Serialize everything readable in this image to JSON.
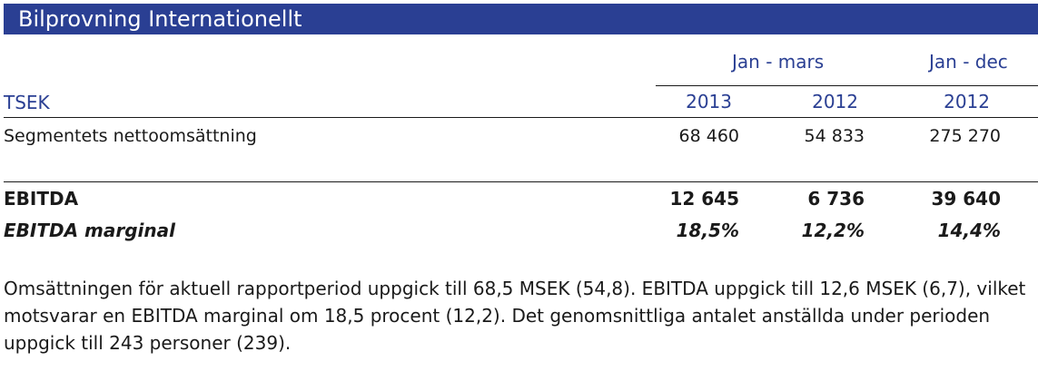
{
  "section_title": "Bilprovning Internationellt",
  "table": {
    "unit_label": "TSEK",
    "period_headers": [
      "Jan - mars",
      "Jan - dec"
    ],
    "years": [
      "2013",
      "2012",
      "2012"
    ],
    "rows": [
      {
        "label": "Segmentets nettoomsättning",
        "values": [
          "68 460",
          "54 833",
          "275 270"
        ]
      },
      {
        "label": "EBITDA",
        "values": [
          "12 645",
          "6 736",
          "39 640"
        ]
      },
      {
        "label": "EBITDA marginal",
        "values": [
          "18,5%",
          "12,2%",
          "14,4%"
        ]
      }
    ]
  },
  "paragraph": "Omsättningen för aktuell rapportperiod uppgick till 68,5 MSEK (54,8).  EBITDA uppgick till 12,6 MSEK (6,7), vilket motsvarar en EBITDA marginal om 18,5 procent (12,2). Det genomsnittliga antalet anställda under perioden uppgick till 243 personer (239).",
  "colors": {
    "accent": "#2a3f93",
    "text": "#1a1a1a"
  }
}
